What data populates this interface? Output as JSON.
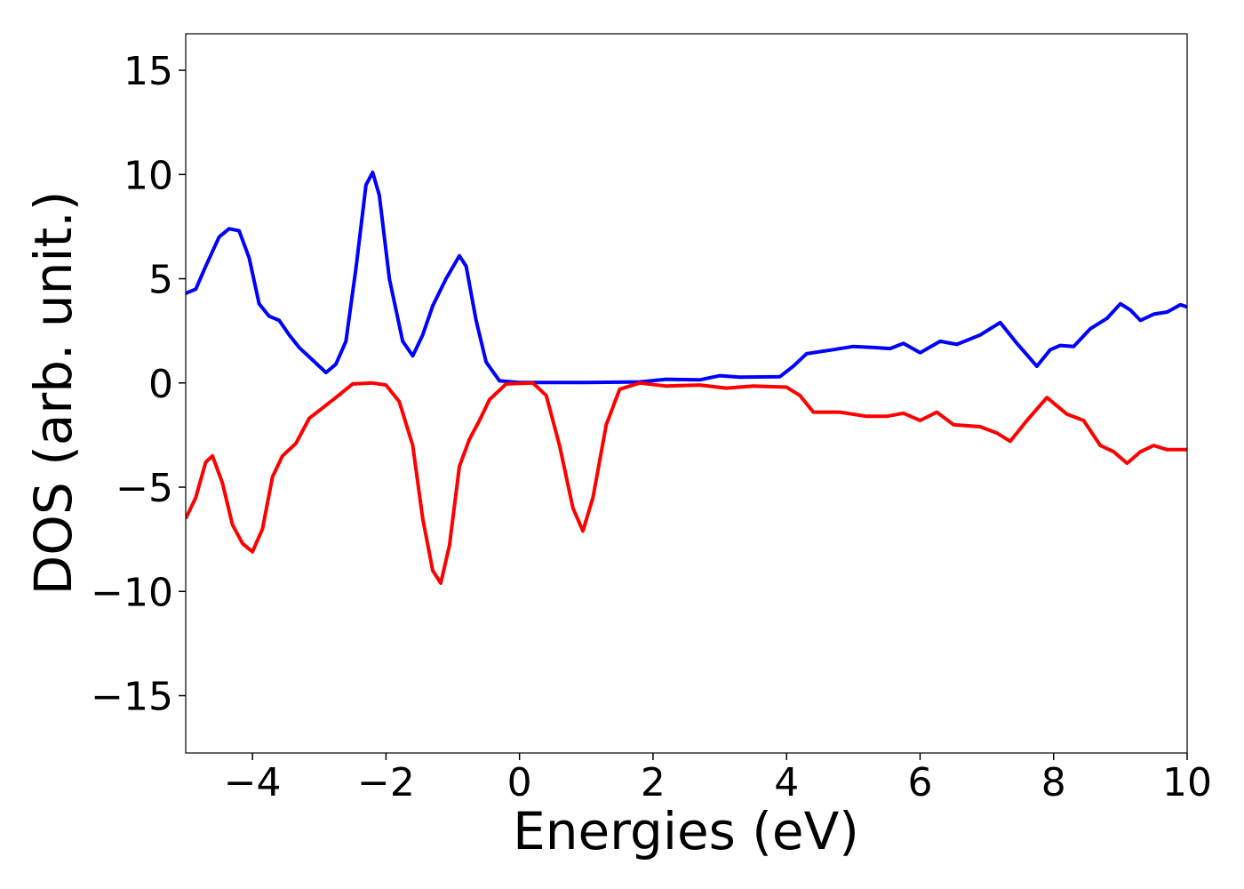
{
  "chart_data": {
    "type": "line",
    "xlabel": "Energies (eV)",
    "ylabel": "DOS (arb. unit.)",
    "xlim": [
      -5,
      10
    ],
    "ylim": [
      -17.75,
      16.75
    ],
    "xticks": [
      {
        "value": -4,
        "label": "−4"
      },
      {
        "value": -2,
        "label": "−2"
      },
      0,
      2,
      4,
      6,
      8,
      10
    ],
    "yticks": [
      {
        "value": -15,
        "label": "−15"
      },
      {
        "value": -10,
        "label": "−10"
      },
      {
        "value": -5,
        "label": "−5"
      },
      0,
      5,
      10,
      15
    ],
    "series": [
      {
        "color": "#0000ff",
        "x": [
          -5,
          -4.85,
          -4.7,
          -4.5,
          -4.35,
          -4.2,
          -4.05,
          -3.9,
          -3.75,
          -3.6,
          -3.45,
          -3.3,
          -3.1,
          -2.9,
          -2.75,
          -2.6,
          -2.45,
          -2.3,
          -2.2,
          -2.1,
          -1.95,
          -1.75,
          -1.6,
          -1.45,
          -1.3,
          -1.1,
          -0.9,
          -0.8,
          -0.65,
          -0.5,
          -0.3,
          0,
          1,
          1.8,
          2.2,
          2.7,
          3.0,
          3.3,
          3.9,
          4.1,
          4.3,
          4.7,
          5.0,
          5.3,
          5.55,
          5.75,
          6.0,
          6.3,
          6.55,
          6.9,
          7.2,
          7.45,
          7.75,
          7.95,
          8.1,
          8.3,
          8.55,
          8.8,
          9.0,
          9.15,
          9.3,
          9.5,
          9.7,
          9.9,
          10
        ],
        "values": [
          4.3,
          4.5,
          5.6,
          7.0,
          7.4,
          7.3,
          6.0,
          3.8,
          3.2,
          3.0,
          2.3,
          1.7,
          1.1,
          0.5,
          0.9,
          2.0,
          5.5,
          9.5,
          10.1,
          9.0,
          5.0,
          2.0,
          1.3,
          2.3,
          3.7,
          5.0,
          6.1,
          5.6,
          3.0,
          1.0,
          0.1,
          0.02,
          0.02,
          0.05,
          0.18,
          0.15,
          0.35,
          0.28,
          0.3,
          0.8,
          1.4,
          1.6,
          1.75,
          1.7,
          1.65,
          1.9,
          1.45,
          2.0,
          1.85,
          2.3,
          2.9,
          1.9,
          0.8,
          1.6,
          1.8,
          1.75,
          2.6,
          3.1,
          3.8,
          3.5,
          3.0,
          3.3,
          3.4,
          3.75,
          3.65
        ]
      },
      {
        "color": "#ff0000",
        "x": [
          -5,
          -4.85,
          -4.7,
          -4.6,
          -4.45,
          -4.3,
          -4.15,
          -4.0,
          -3.85,
          -3.7,
          -3.55,
          -3.35,
          -3.15,
          -2.95,
          -2.75,
          -2.5,
          -2.2,
          -2.0,
          -1.8,
          -1.6,
          -1.45,
          -1.3,
          -1.18,
          -1.05,
          -0.9,
          -0.75,
          -0.6,
          -0.45,
          -0.2,
          0.2,
          0.4,
          0.6,
          0.8,
          0.95,
          1.1,
          1.3,
          1.5,
          1.8,
          2.2,
          2.7,
          3.1,
          3.5,
          4.0,
          4.2,
          4.4,
          4.8,
          5.2,
          5.5,
          5.75,
          6.0,
          6.25,
          6.5,
          6.9,
          7.15,
          7.35,
          7.6,
          7.9,
          8.2,
          8.45,
          8.7,
          8.9,
          9.1,
          9.3,
          9.5,
          9.7,
          10
        ],
        "values": [
          -6.5,
          -5.5,
          -3.8,
          -3.5,
          -4.8,
          -6.8,
          -7.7,
          -8.1,
          -7.0,
          -4.5,
          -3.5,
          -2.9,
          -1.7,
          -1.2,
          -0.7,
          -0.05,
          0,
          -0.1,
          -0.9,
          -3.0,
          -6.5,
          -9.0,
          -9.6,
          -7.8,
          -4.0,
          -2.7,
          -1.8,
          -0.8,
          -0.05,
          0,
          -0.6,
          -3.0,
          -6.0,
          -7.1,
          -5.5,
          -2.0,
          -0.3,
          0,
          -0.15,
          -0.1,
          -0.25,
          -0.15,
          -0.2,
          -0.6,
          -1.4,
          -1.4,
          -1.6,
          -1.6,
          -1.45,
          -1.8,
          -1.4,
          -2.0,
          -2.1,
          -2.4,
          -2.8,
          -1.8,
          -0.7,
          -1.5,
          -1.8,
          -3.0,
          -3.3,
          -3.85,
          -3.3,
          -3.0,
          -3.2,
          -3.2
        ]
      }
    ]
  }
}
